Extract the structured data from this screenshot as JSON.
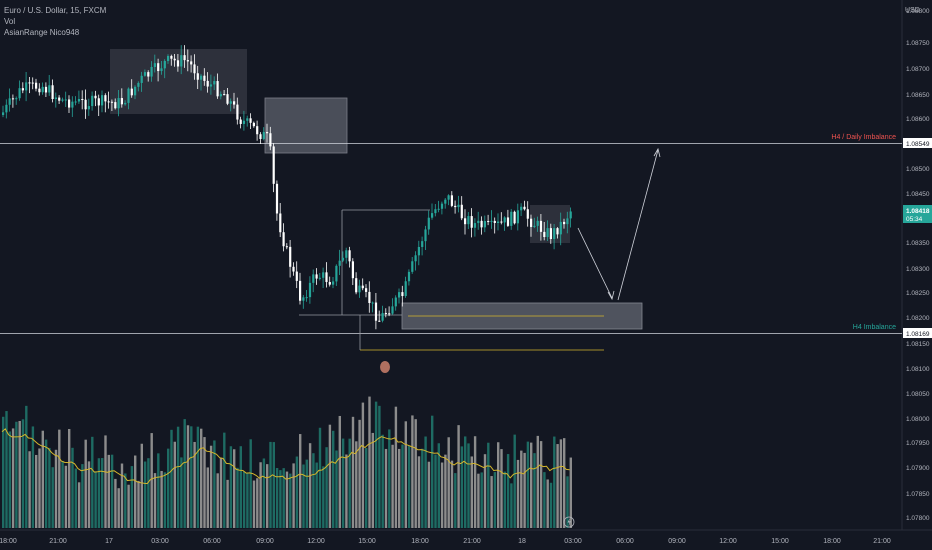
{
  "legend": {
    "symbol": "Euro / U.S. Dollar, 15, FXCM",
    "vol": "Vol",
    "indicator": "AsianRange Nico948"
  },
  "price_axis": {
    "currency": "USD",
    "ticks": [
      "1.08800",
      "1.08750",
      "1.08700",
      "1.08650",
      "1.08600",
      "1.08549",
      "1.08500",
      "1.08450",
      "1.08418",
      "05:34",
      "1.08350",
      "1.08300",
      "1.08250",
      "1.08200",
      "1.08169",
      "1.08150",
      "1.08100",
      "1.08050",
      "1.08000",
      "1.07950",
      "1.07900",
      "1.07850",
      "1.07800"
    ]
  },
  "time_axis": {
    "ticks": [
      "18:00",
      "21:00",
      "17",
      "03:00",
      "06:00",
      "09:00",
      "12:00",
      "15:00",
      "18:00",
      "21:00",
      "18",
      "03:00",
      "06:00",
      "09:00",
      "12:00",
      "15:00",
      "18:00",
      "21:00"
    ]
  },
  "annotations": {
    "daily_imbalance": "H4 / Daily Imbalance",
    "h4_imbalance": "H4 Imbalance"
  },
  "colors": {
    "background": "#131722",
    "up": "#26a69a",
    "down": "#ffffff",
    "volume_up": "#1e6b63",
    "volume_down": "#8c8c8c",
    "ma": "#d4b62c",
    "daily_label": "#ef5350",
    "h4_label": "#26a69a",
    "current_price_bg": "#26a69a"
  },
  "chart_data": {
    "type": "candlestick",
    "symbol": "EURUSD",
    "timeframe": "15",
    "ylim": [
      1.0777,
      1.0885
    ],
    "levels": [
      {
        "name": "H4 / Daily Imbalance",
        "price": 1.08549
      },
      {
        "name": "H4 Imbalance",
        "price": 1.08169
      }
    ],
    "current_price": 1.08418,
    "countdown": "05:34"
  },
  "toolbar": {
    "replay_icon": "lightning-icon"
  }
}
